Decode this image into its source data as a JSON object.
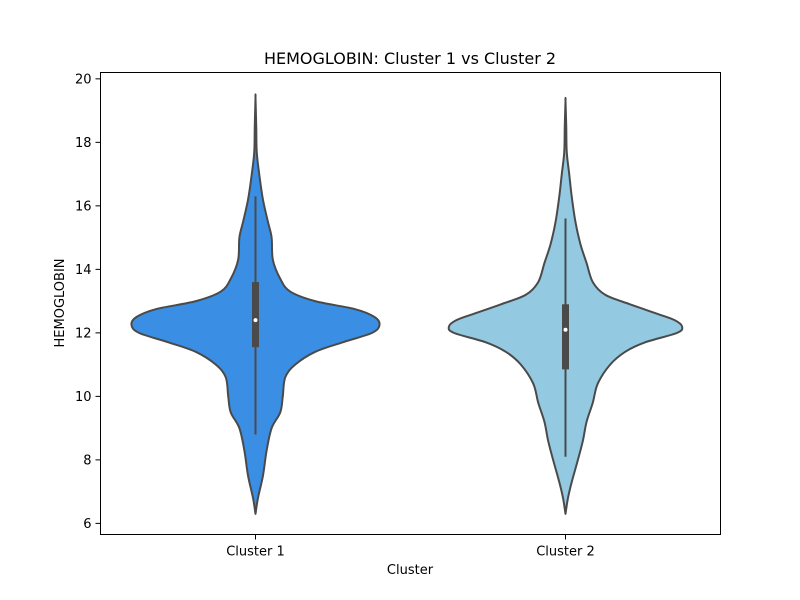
{
  "chart_data": {
    "type": "violin",
    "title": "HEMOGLOBIN: Cluster 1 vs Cluster 2",
    "xlabel": "Cluster",
    "ylabel": "HEMOGLOBIN",
    "categories": [
      "Cluster 1",
      "Cluster 2"
    ],
    "ylim": [
      5.65,
      20.2
    ],
    "yticks": [
      6,
      8,
      10,
      12,
      14,
      16,
      18,
      20
    ],
    "grid": false,
    "series": [
      {
        "category": "Cluster 1",
        "color": "#3a8fe4",
        "min": 6.3,
        "max": 19.4,
        "whisker_low": 8.8,
        "whisker_high": 16.3,
        "q1": 11.55,
        "median": 12.4,
        "q3": 13.6,
        "density": [
          [
            6.3,
            0.0
          ],
          [
            6.8,
            0.02
          ],
          [
            7.5,
            0.06
          ],
          [
            8.3,
            0.09
          ],
          [
            9.0,
            0.13
          ],
          [
            9.5,
            0.2
          ],
          [
            10.0,
            0.22
          ],
          [
            10.6,
            0.24
          ],
          [
            11.0,
            0.32
          ],
          [
            11.4,
            0.48
          ],
          [
            11.7,
            0.7
          ],
          [
            12.0,
            0.94
          ],
          [
            12.25,
            1.0
          ],
          [
            12.5,
            0.96
          ],
          [
            12.75,
            0.8
          ],
          [
            13.0,
            0.48
          ],
          [
            13.3,
            0.28
          ],
          [
            13.7,
            0.2
          ],
          [
            14.3,
            0.14
          ],
          [
            15.0,
            0.13
          ],
          [
            15.5,
            0.1
          ],
          [
            16.2,
            0.06
          ],
          [
            17.0,
            0.03
          ],
          [
            17.7,
            0.01
          ],
          [
            18.5,
            0.006
          ],
          [
            19.4,
            0.0
          ]
        ]
      },
      {
        "category": "Cluster 2",
        "color": "#93c9e1",
        "min": 6.3,
        "max": 19.3,
        "whisker_low": 8.1,
        "whisker_high": 15.6,
        "q1": 10.85,
        "median": 12.1,
        "q3": 12.9,
        "density": [
          [
            6.3,
            0.0
          ],
          [
            6.8,
            0.02
          ],
          [
            7.3,
            0.05
          ],
          [
            8.0,
            0.1
          ],
          [
            8.6,
            0.14
          ],
          [
            9.2,
            0.17
          ],
          [
            9.8,
            0.22
          ],
          [
            10.4,
            0.26
          ],
          [
            11.0,
            0.36
          ],
          [
            11.4,
            0.48
          ],
          [
            11.7,
            0.64
          ],
          [
            12.0,
            0.9
          ],
          [
            12.2,
            0.94
          ],
          [
            12.4,
            0.88
          ],
          [
            12.6,
            0.74
          ],
          [
            12.9,
            0.52
          ],
          [
            13.2,
            0.32
          ],
          [
            13.6,
            0.22
          ],
          [
            14.2,
            0.17
          ],
          [
            14.8,
            0.12
          ],
          [
            15.5,
            0.08
          ],
          [
            16.3,
            0.05
          ],
          [
            17.0,
            0.03
          ],
          [
            17.7,
            0.01
          ],
          [
            18.5,
            0.006
          ],
          [
            19.3,
            0.0
          ]
        ]
      }
    ]
  }
}
